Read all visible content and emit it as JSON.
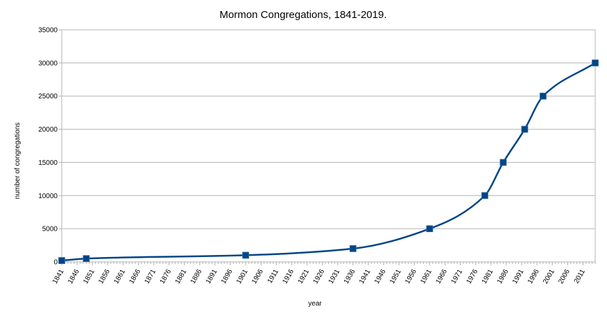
{
  "chart_data": {
    "type": "line",
    "title": "Mormon Congregations, 1841-2019.",
    "xlabel": "year",
    "ylabel": "number of congregations",
    "xlim": [
      1841,
      2015
    ],
    "ylim": [
      0,
      35000
    ],
    "y_ticks": [
      0,
      5000,
      10000,
      15000,
      20000,
      25000,
      30000,
      35000
    ],
    "x_tick_start": 1841,
    "x_tick_end": 2011,
    "x_tick_step": 5,
    "grid": true,
    "smooth": true,
    "series": [
      {
        "color": "#004586",
        "x": [
          1841,
          1849,
          1901,
          1936,
          1961,
          1979,
          1985,
          1992,
          1998,
          2015
        ],
        "y": [
          200,
          500,
          1000,
          2000,
          5000,
          10000,
          15000,
          20000,
          25000,
          30000
        ]
      }
    ]
  }
}
